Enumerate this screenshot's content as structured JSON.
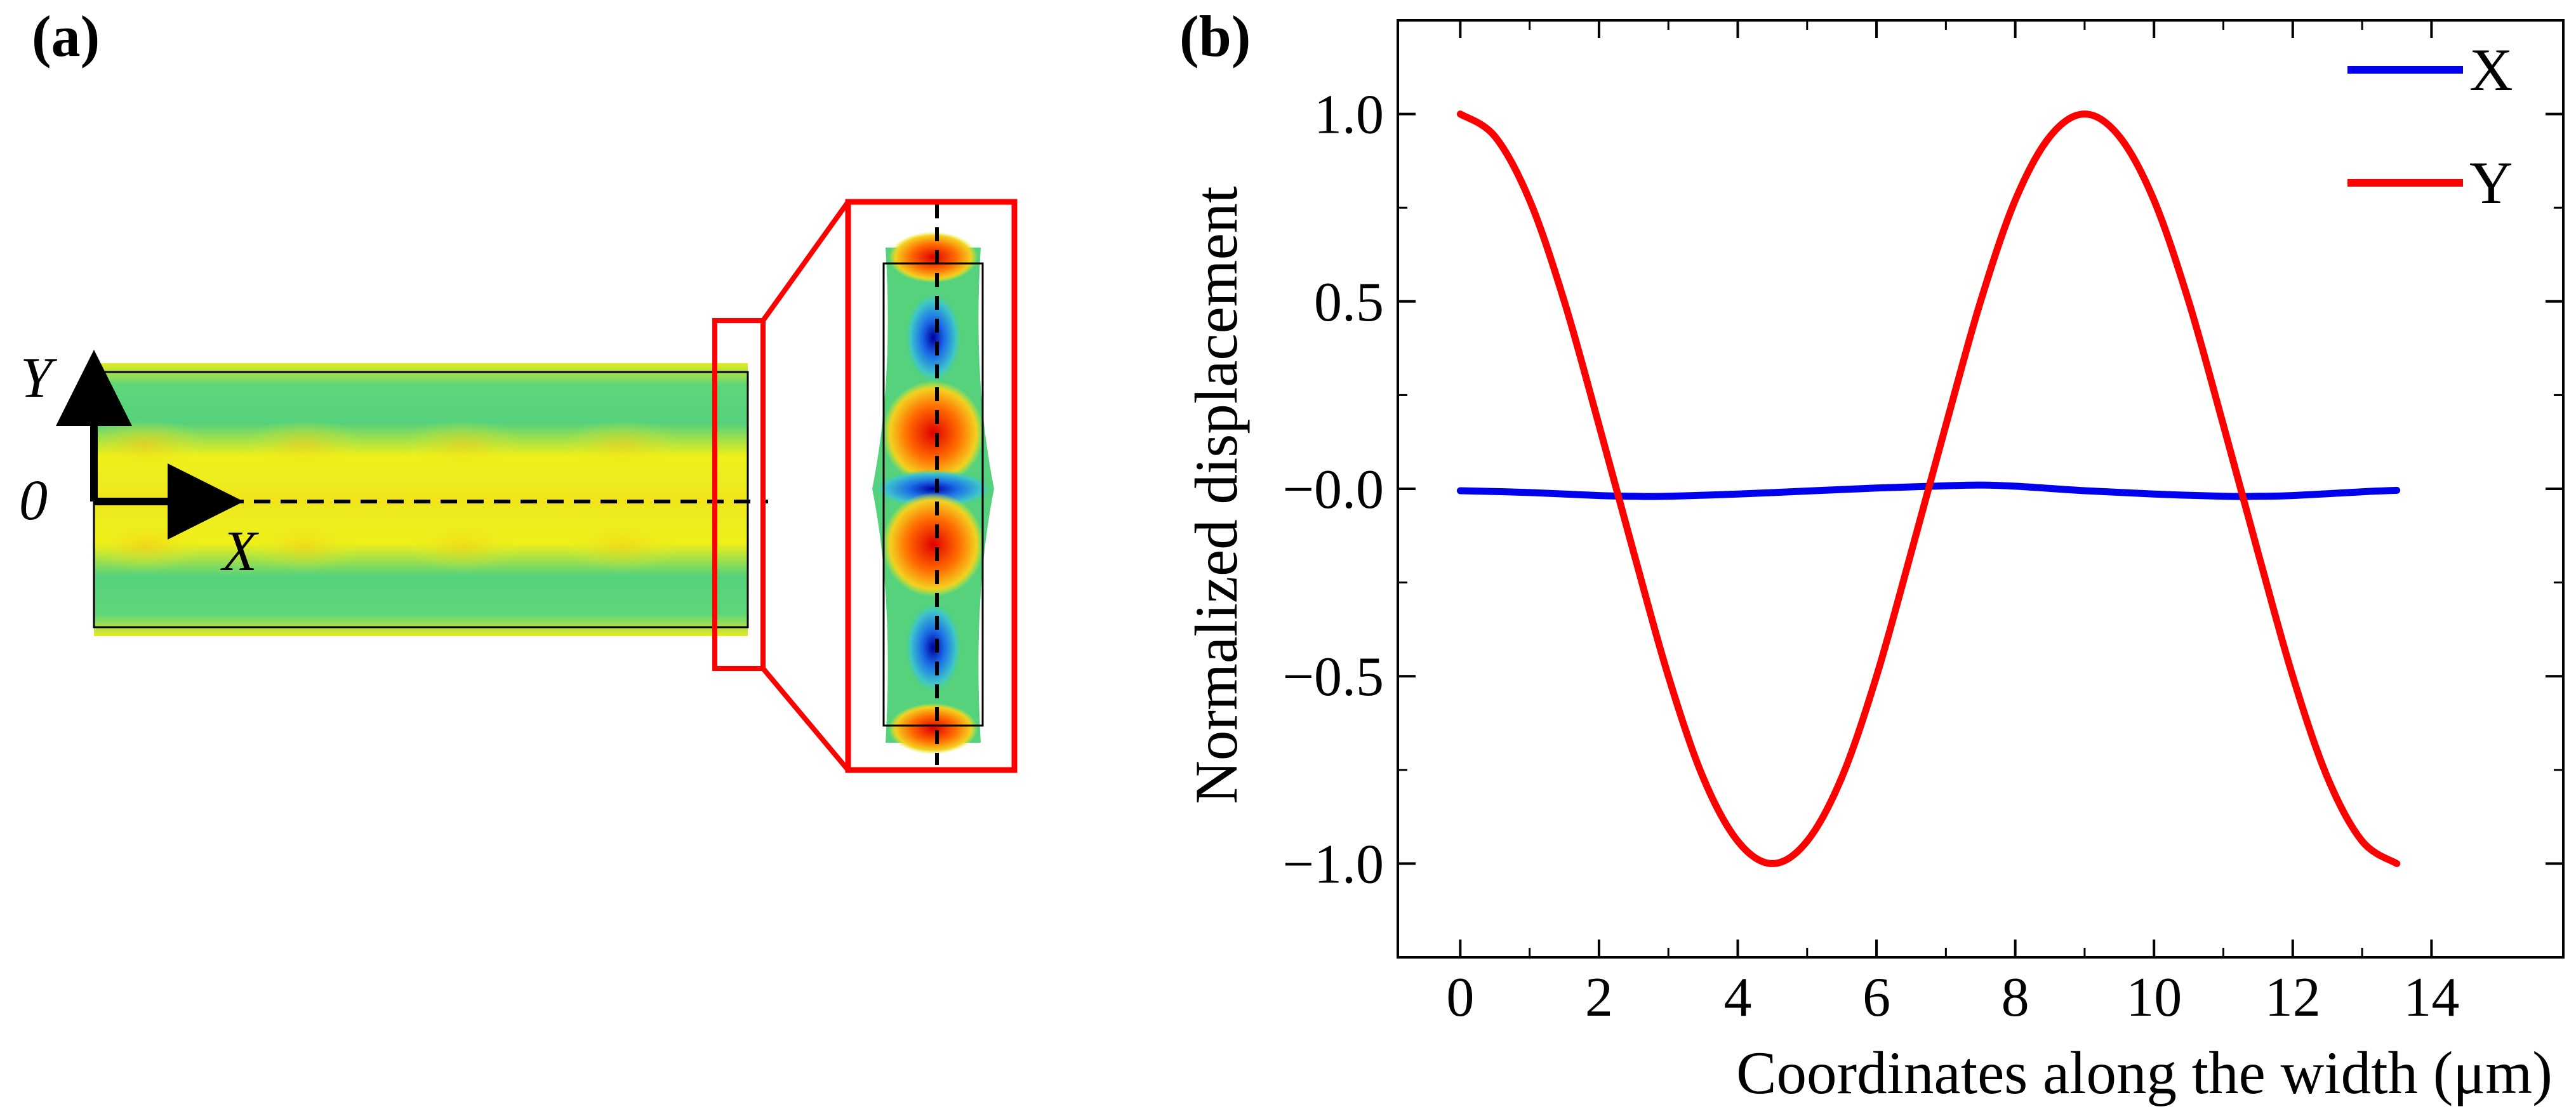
{
  "panel_a": {
    "label": "(a)",
    "axis_y_label": "Y",
    "axis_x_label": "X",
    "origin_label": "0"
  },
  "panel_b": {
    "label": "(b)"
  },
  "colors": {
    "series_x": "#0000ee",
    "series_y": "#ff0000",
    "zoom_box": "#ff0000",
    "field_green": "#4fd17a",
    "field_yellow": "#e9ef1a"
  },
  "chart_data": {
    "type": "line",
    "title": "",
    "xlabel": "Coordinates along the width (μm)",
    "ylabel": "Normalized displacement",
    "xlim": [
      -0.9,
      15.9
    ],
    "ylim": [
      -1.25,
      1.25
    ],
    "x_ticks": [
      0,
      2,
      4,
      6,
      8,
      10,
      12,
      14
    ],
    "x_tick_labels": [
      "0",
      "2",
      "4",
      "6",
      "8",
      "10",
      "12",
      "14"
    ],
    "y_ticks": [
      1.0,
      0.5,
      0.0,
      -0.5,
      -1.0
    ],
    "y_tick_labels": [
      "1.0",
      "0.5",
      "−0.0",
      "−0.5",
      "−1.0"
    ],
    "legend_position": "top-right",
    "series": [
      {
        "name": "X",
        "color": "#0000ee",
        "x": [
          0,
          1,
          2,
          2.5,
          3,
          4,
          5,
          6,
          7,
          7.5,
          8,
          9,
          10,
          11,
          11.5,
          12,
          13,
          13.5
        ],
        "y": [
          -0.005,
          -0.01,
          -0.018,
          -0.02,
          -0.02,
          -0.014,
          -0.006,
          0.002,
          0.008,
          0.01,
          0.007,
          -0.005,
          -0.014,
          -0.02,
          -0.02,
          -0.018,
          -0.008,
          -0.004
        ]
      },
      {
        "name": "Y",
        "color": "#ff0000",
        "x": [
          0,
          0.5,
          1,
          1.5,
          2,
          2.5,
          3,
          3.5,
          4,
          4.5,
          5,
          5.5,
          6,
          6.5,
          7,
          7.5,
          8,
          8.5,
          9,
          9.5,
          10,
          10.5,
          11,
          11.5,
          12,
          12.5,
          13,
          13.5
        ],
        "y": [
          1.0,
          0.94,
          0.77,
          0.5,
          0.17,
          -0.17,
          -0.5,
          -0.77,
          -0.94,
          -1.0,
          -0.94,
          -0.77,
          -0.5,
          -0.17,
          0.17,
          0.5,
          0.77,
          0.94,
          1.0,
          0.94,
          0.77,
          0.5,
          0.17,
          -0.17,
          -0.5,
          -0.77,
          -0.94,
          -1.0
        ]
      }
    ]
  }
}
